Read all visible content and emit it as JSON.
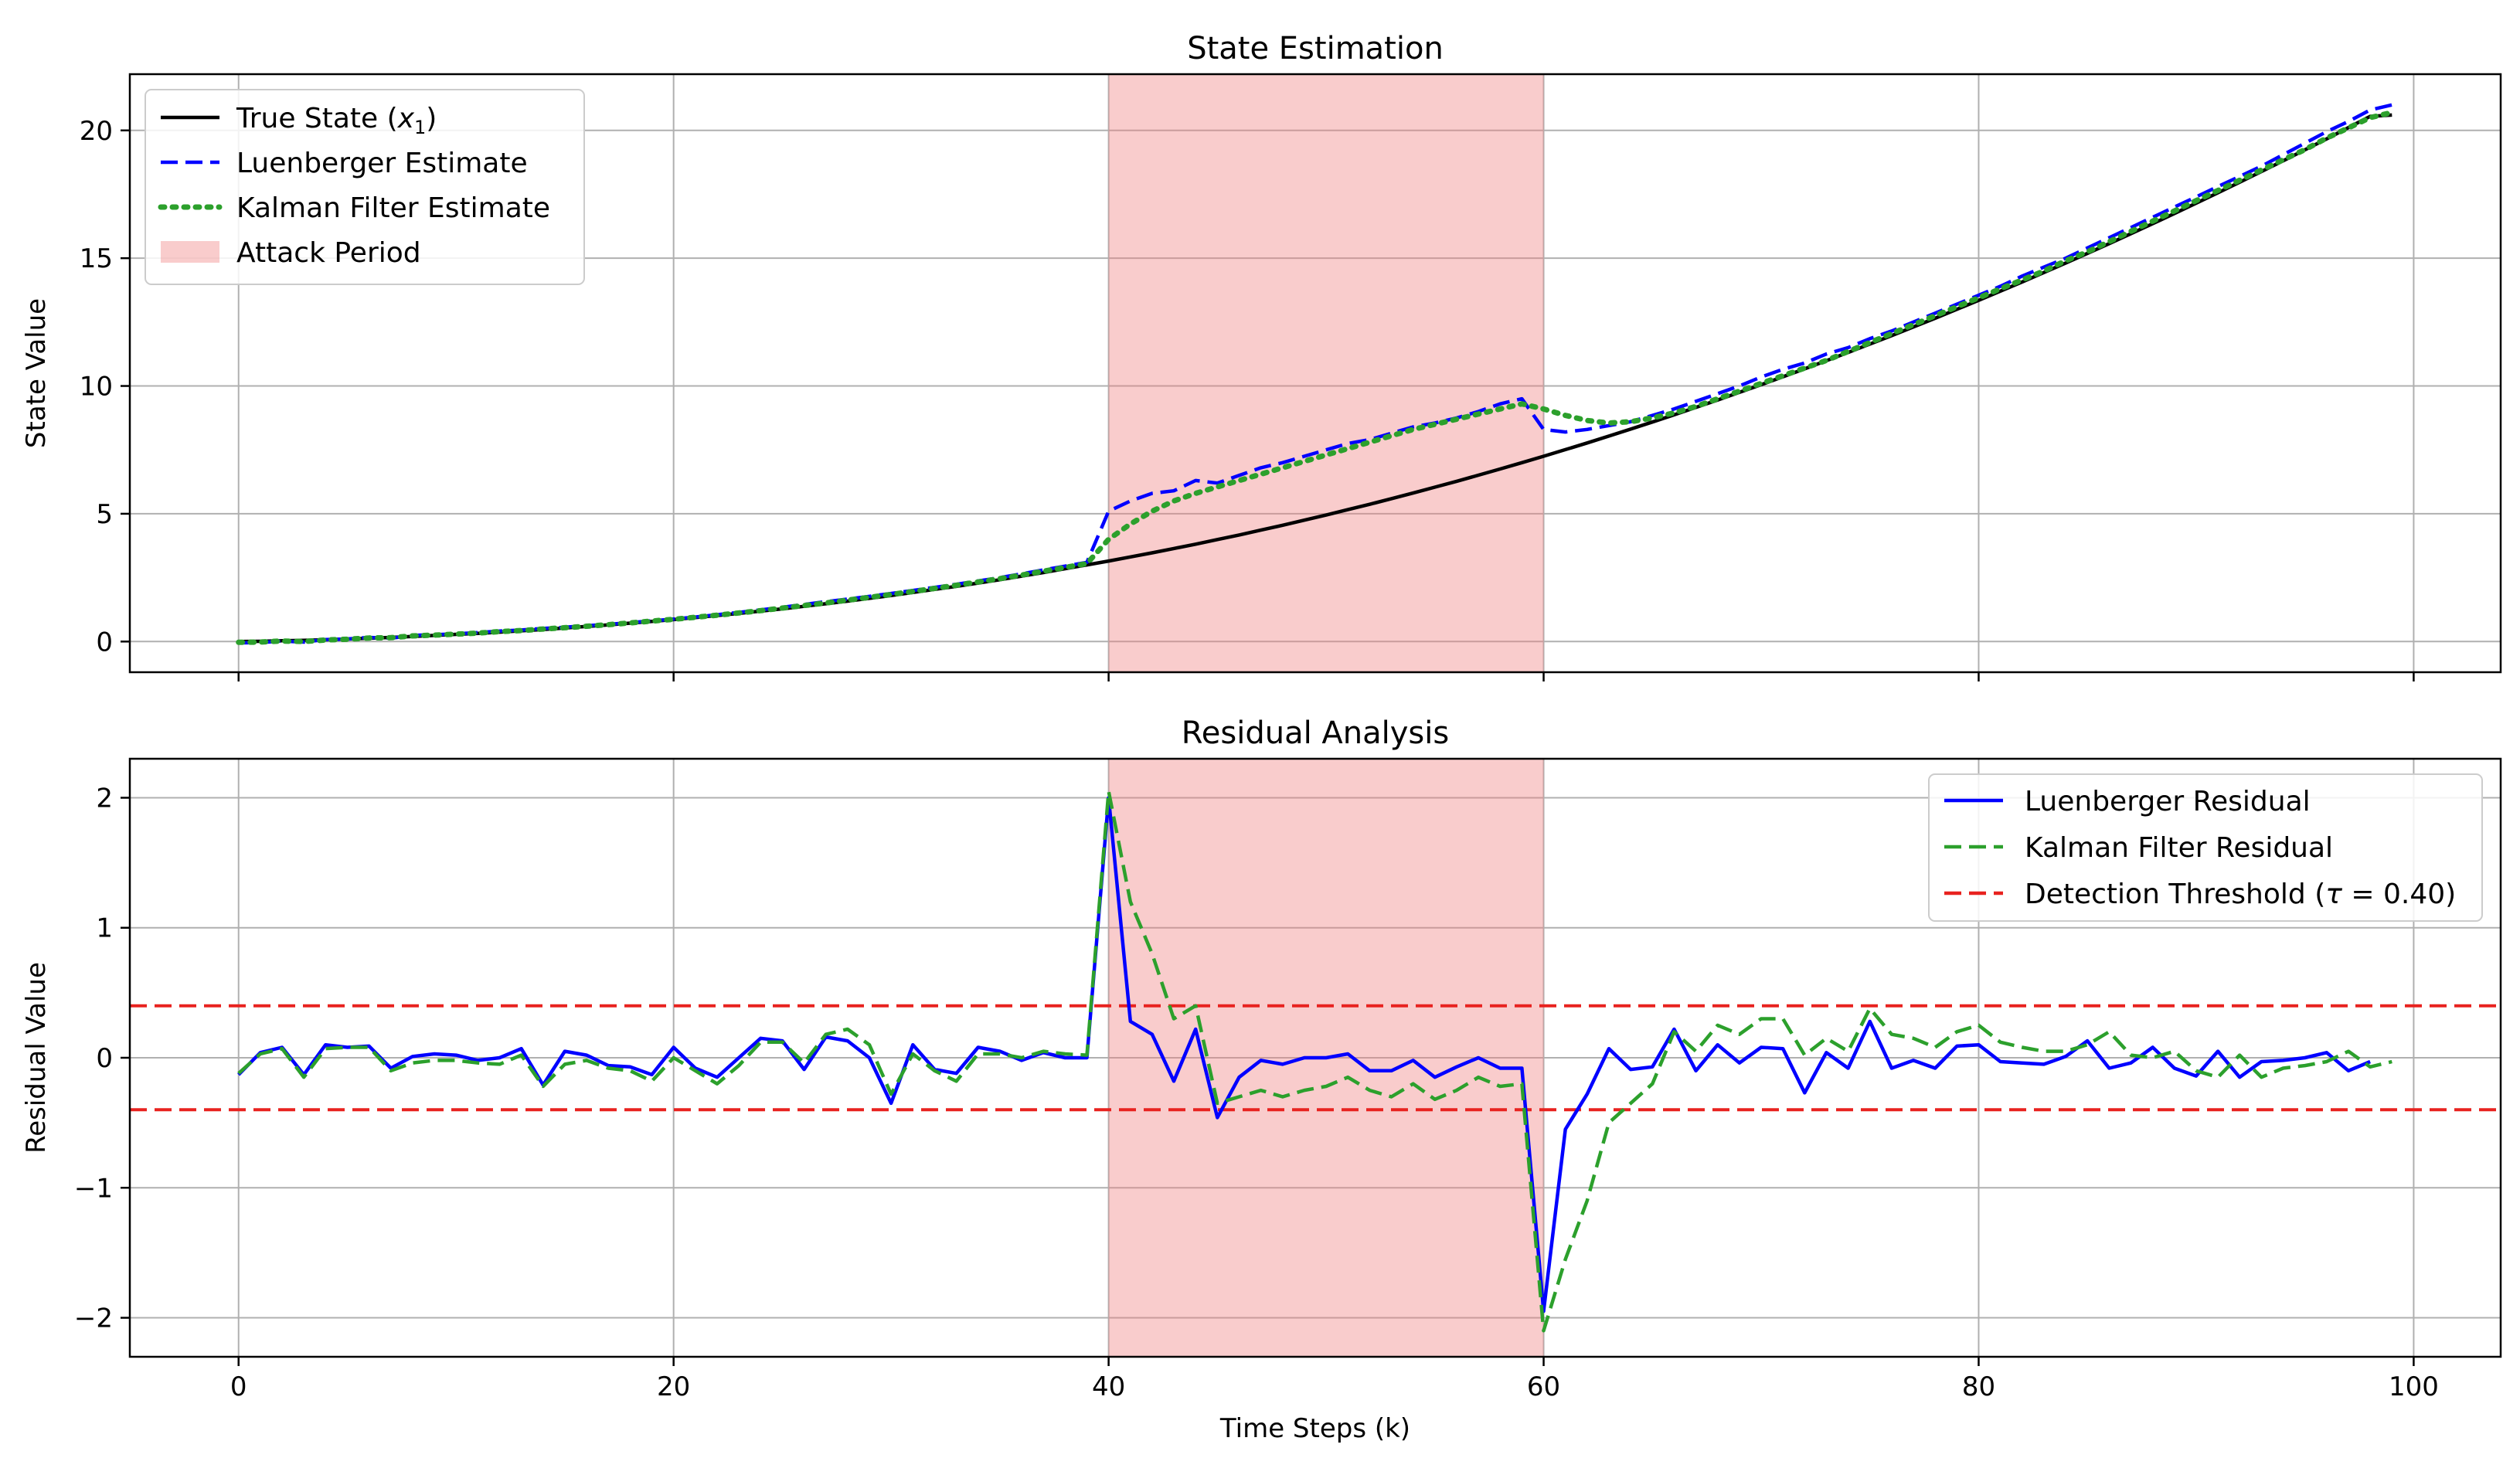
{
  "chart_data": [
    {
      "type": "line",
      "title": "State Estimation",
      "xlabel": "",
      "ylabel": "State Value",
      "xlim": [
        -5,
        104
      ],
      "ylim": [
        -1.2,
        22.2
      ],
      "xticks": [
        0,
        20,
        40,
        60,
        80,
        100
      ],
      "yticks": [
        0,
        5,
        10,
        15,
        20
      ],
      "xtick_labels": [
        "0",
        "20",
        "40",
        "60",
        "80",
        "100"
      ],
      "ytick_labels": [
        "0",
        "5",
        "10",
        "15",
        "20"
      ],
      "grid": true,
      "legend_position": "upper-left",
      "attack_period": {
        "start": 40,
        "end": 60,
        "label": "Attack Period",
        "color": "#f08080"
      },
      "series": [
        {
          "name": "True State (x₁)",
          "color": "#000000",
          "style": "solid",
          "x_start": 0,
          "values": [
            0,
            0.01,
            0.03,
            0.05,
            0.07,
            0.1,
            0.13,
            0.16,
            0.2,
            0.24,
            0.28,
            0.32,
            0.37,
            0.42,
            0.47,
            0.53,
            0.59,
            0.65,
            0.72,
            0.79,
            0.86,
            0.94,
            1.02,
            1.1,
            1.19,
            1.28,
            1.38,
            1.48,
            1.58,
            1.69,
            1.8,
            1.92,
            2.04,
            2.16,
            2.29,
            2.42,
            2.56,
            2.7,
            2.85,
            3,
            3.15,
            3.31,
            3.47,
            3.64,
            3.81,
            3.99,
            4.17,
            4.36,
            4.55,
            4.75,
            4.95,
            5.16,
            5.37,
            5.59,
            5.81,
            6.04,
            6.27,
            6.51,
            6.75,
            7,
            7.25,
            7.51,
            7.77,
            8.04,
            8.31,
            8.59,
            8.87,
            9.16,
            9.45,
            9.75,
            10.05,
            10.36,
            10.67,
            10.99,
            11.31,
            11.64,
            11.97,
            12.31,
            12.65,
            13,
            13.35,
            13.71,
            14.07,
            14.44,
            14.81,
            15.19,
            15.57,
            15.96,
            16.35,
            16.75,
            17.15,
            17.56,
            17.97,
            18.39,
            18.81,
            19.24,
            19.67,
            20.11,
            20.55,
            20.6
          ]
        },
        {
          "name": "Luenberger Estimate",
          "color": "#0000ff",
          "style": "dashed",
          "x_start": 0,
          "values": [
            -0.05,
            -0.04,
            0.02,
            -0.02,
            0.08,
            0.1,
            0.16,
            0.13,
            0.24,
            0.27,
            0.3,
            0.35,
            0.41,
            0.45,
            0.51,
            0.56,
            0.62,
            0.67,
            0.74,
            0.81,
            0.88,
            0.96,
            1.05,
            1.14,
            1.24,
            1.34,
            1.45,
            1.56,
            1.66,
            1.77,
            1.88,
            2,
            2.12,
            2.24,
            2.37,
            2.5,
            2.65,
            2.8,
            2.95,
            3.1,
            5.1,
            5.5,
            5.8,
            5.9,
            6.3,
            6.2,
            6.5,
            6.8,
            7,
            7.25,
            7.5,
            7.75,
            7.9,
            8.15,
            8.4,
            8.55,
            8.75,
            9,
            9.3,
            9.5,
            8.3,
            8.2,
            8.3,
            8.45,
            8.6,
            8.85,
            9.1,
            9.4,
            9.7,
            10,
            10.35,
            10.65,
            10.9,
            11.25,
            11.5,
            11.85,
            12.15,
            12.5,
            12.85,
            13.2,
            13.55,
            13.9,
            14.3,
            14.65,
            15,
            15.4,
            15.8,
            16.2,
            16.6,
            17,
            17.4,
            17.8,
            18.2,
            18.6,
            19.05,
            19.5,
            19.95,
            20.35,
            20.8,
            21
          ]
        },
        {
          "name": "Kalman Filter Estimate",
          "color": "#2ca02c",
          "style": "dotted",
          "x_start": 0,
          "values": [
            -0.03,
            -0.02,
            0.02,
            0,
            0.06,
            0.09,
            0.14,
            0.15,
            0.22,
            0.25,
            0.29,
            0.33,
            0.39,
            0.43,
            0.49,
            0.54,
            0.6,
            0.66,
            0.73,
            0.8,
            0.87,
            0.95,
            1.03,
            1.12,
            1.21,
            1.31,
            1.41,
            1.51,
            1.62,
            1.73,
            1.84,
            1.96,
            2.08,
            2.2,
            2.33,
            2.46,
            2.6,
            2.75,
            2.9,
            3.05,
            4,
            4.6,
            5.1,
            5.5,
            5.8,
            6.05,
            6.3,
            6.55,
            6.8,
            7.05,
            7.3,
            7.55,
            7.8,
            8.05,
            8.3,
            8.5,
            8.7,
            8.9,
            9.1,
            9.3,
            9.1,
            8.85,
            8.65,
            8.55,
            8.6,
            8.75,
            8.95,
            9.2,
            9.5,
            9.8,
            10.1,
            10.4,
            10.7,
            11,
            11.35,
            11.7,
            12.05,
            12.4,
            12.75,
            13.1,
            13.45,
            13.8,
            14.15,
            14.5,
            14.9,
            15.25,
            15.65,
            16.05,
            16.45,
            16.85,
            17.25,
            17.65,
            18.05,
            18.45,
            18.85,
            19.25,
            19.7,
            20.1,
            20.5,
            20.7
          ]
        }
      ],
      "legend": [
        "True State (x₁)",
        "Luenberger Estimate",
        "Kalman Filter Estimate",
        "Attack Period"
      ]
    },
    {
      "type": "line",
      "title": "Residual Analysis",
      "xlabel": "Time Steps (k)",
      "ylabel": "Residual Value",
      "xlim": [
        -5,
        104
      ],
      "ylim": [
        -2.3,
        2.3
      ],
      "xticks": [
        0,
        20,
        40,
        60,
        80,
        100
      ],
      "yticks": [
        -2,
        -1,
        0,
        1,
        2
      ],
      "xtick_labels": [
        "0",
        "20",
        "40",
        "60",
        "80",
        "100"
      ],
      "ytick_labels": [
        "−2",
        "−1",
        "0",
        "1",
        "2"
      ],
      "grid": true,
      "legend_position": "upper-right",
      "attack_period": {
        "start": 40,
        "end": 60,
        "color": "#f08080"
      },
      "thresholds": [
        0.4,
        -0.4
      ],
      "series": [
        {
          "name": "Luenberger Residual",
          "color": "#0000ff",
          "style": "solid",
          "x_start": 0,
          "values": [
            -0.13,
            0.04,
            0.08,
            -0.13,
            0.1,
            0.08,
            0.09,
            -0.08,
            0.01,
            0.03,
            0.02,
            -0.02,
            0,
            0.07,
            -0.21,
            0.05,
            0.02,
            -0.06,
            -0.07,
            -0.13,
            0.08,
            -0.08,
            -0.15,
            0,
            0.15,
            0.13,
            -0.09,
            0.16,
            0.13,
            0,
            -0.35,
            0.1,
            -0.09,
            -0.12,
            0.08,
            0.05,
            -0.02,
            0.04,
            0,
            0,
            2,
            0.28,
            0.18,
            -0.18,
            0.22,
            -0.46,
            -0.15,
            -0.02,
            -0.05,
            0,
            0,
            0.03,
            -0.1,
            -0.1,
            -0.02,
            -0.15,
            -0.07,
            0,
            -0.08,
            -0.08,
            -1.95,
            -0.55,
            -0.28,
            0.07,
            -0.09,
            -0.07,
            0.22,
            -0.1,
            0.1,
            -0.04,
            0.08,
            0.07,
            -0.27,
            0.04,
            -0.08,
            0.28,
            -0.08,
            -0.02,
            -0.08,
            0.09,
            0.1,
            -0.03,
            -0.04,
            -0.05,
            0.01,
            0.13,
            -0.08,
            -0.04,
            0.08,
            -0.08,
            -0.14,
            0.05,
            -0.15,
            -0.03,
            -0.02,
            0,
            0.04,
            -0.1,
            -0.03
          ]
        },
        {
          "name": "Kalman Filter Residual",
          "color": "#2ca02c",
          "style": "dashed",
          "x_start": 0,
          "values": [
            -0.12,
            0.03,
            0.07,
            -0.15,
            0.07,
            0.08,
            0.08,
            -0.1,
            -0.04,
            -0.02,
            -0.02,
            -0.04,
            -0.05,
            0.02,
            -0.22,
            -0.05,
            -0.02,
            -0.08,
            -0.1,
            -0.18,
            0,
            -0.1,
            -0.2,
            -0.06,
            0.12,
            0.12,
            -0.04,
            0.18,
            0.22,
            0.1,
            -0.28,
            0.03,
            -0.1,
            -0.18,
            0.03,
            0.03,
            0,
            0.05,
            0.03,
            0.02,
            2.05,
            1.2,
            0.8,
            0.3,
            0.4,
            -0.35,
            -0.3,
            -0.25,
            -0.3,
            -0.25,
            -0.22,
            -0.15,
            -0.25,
            -0.3,
            -0.2,
            -0.32,
            -0.25,
            -0.15,
            -0.22,
            -0.2,
            -2.1,
            -1.55,
            -1.1,
            -0.5,
            -0.35,
            -0.2,
            0.2,
            0.05,
            0.25,
            0.18,
            0.3,
            0.3,
            0.02,
            0.15,
            0.05,
            0.38,
            0.18,
            0.15,
            0.08,
            0.2,
            0.25,
            0.12,
            0.08,
            0.05,
            0.05,
            0.1,
            0.2,
            0.02,
            0,
            0.05,
            -0.1,
            -0.15,
            0.02,
            -0.15,
            -0.08,
            -0.06,
            -0.03,
            0.05,
            -0.07,
            -0.03
          ]
        }
      ],
      "legend": [
        "Luenberger Residual",
        "Kalman Filter Residual",
        "Detection Threshold (τ = 0.40)"
      ]
    }
  ]
}
